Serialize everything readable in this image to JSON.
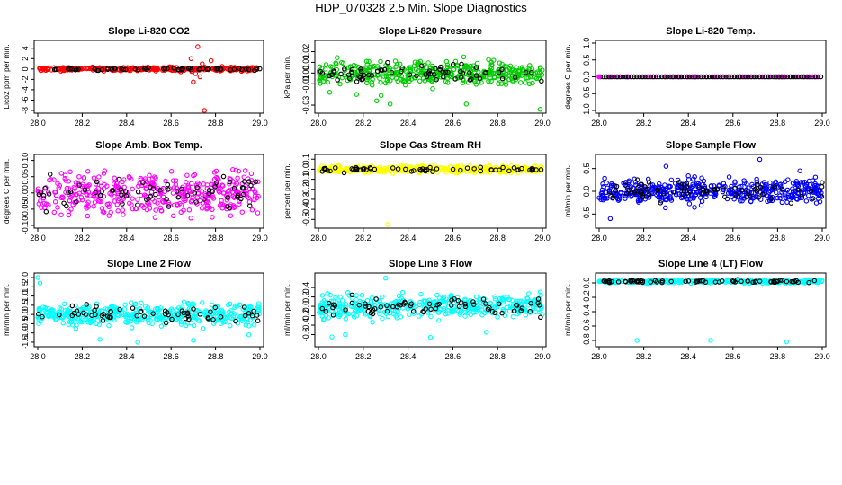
{
  "figure_title": "HDP_070328  2.5 Min. Slope Diagnostics",
  "colors": {
    "red": "#ff0000",
    "green": "#00cc00",
    "magenta": "#ff00ff",
    "yellow": "#ffff00",
    "blue": "#0000ff",
    "cyan": "#00ffff",
    "black": "#000000"
  },
  "chart_data": [
    {
      "type": "scatter",
      "title": "Slope Li-820 CO2",
      "ylabel": "Lico2 ppm per min.",
      "xlim": [
        28.0,
        29.0
      ],
      "ylim": [
        -8,
        5
      ],
      "xticks": [
        "28.0",
        "28.2",
        "28.4",
        "28.6",
        "28.8",
        "29.0"
      ],
      "yticks": [
        {
          "v": -8,
          "label": "-8"
        },
        {
          "v": -6,
          "label": "-6"
        },
        {
          "v": -4,
          "label": "-4"
        },
        {
          "v": -2,
          "label": "-2"
        },
        {
          "v": 0,
          "label": "0"
        },
        {
          "v": 2,
          "label": "2"
        },
        {
          "v": 4,
          "label": "4"
        }
      ],
      "color": "red",
      "spread": 0.25,
      "n_color": 300,
      "n_black": 60,
      "outliers": [
        [
          28.72,
          4.3
        ],
        [
          28.75,
          -8.0
        ],
        [
          28.7,
          -2.5
        ],
        [
          28.73,
          -1.5
        ],
        [
          28.78,
          1.6
        ],
        [
          28.71,
          -0.9
        ],
        [
          28.74,
          1.0
        ],
        [
          28.69,
          2.0
        ]
      ]
    },
    {
      "type": "scatter",
      "title": "Slope Li-820 Pressure",
      "ylabel": "kPa per min.",
      "xlim": [
        28.0,
        29.0
      ],
      "ylim": [
        -0.035,
        0.028
      ],
      "xticks": [
        "28.0",
        "28.2",
        "28.4",
        "28.6",
        "28.8",
        "29.0"
      ],
      "yticks": [
        {
          "v": -0.03,
          "label": "-0.03"
        },
        {
          "v": -0.01,
          "label": "-0.01"
        },
        {
          "v": 0.0,
          "label": "0.00"
        },
        {
          "v": 0.01,
          "label": "0.01"
        },
        {
          "v": 0.02,
          "label": "0.02"
        }
      ],
      "color": "green",
      "spread": 0.007,
      "n_color": 420,
      "n_black": 70,
      "outliers": [
        [
          28.26,
          -0.026
        ],
        [
          28.32,
          -0.029
        ],
        [
          28.66,
          -0.029
        ],
        [
          28.99,
          -0.034
        ],
        [
          28.05,
          -0.018
        ],
        [
          28.17,
          -0.02
        ],
        [
          28.28,
          -0.021
        ]
      ]
    },
    {
      "type": "scatter",
      "title": "Slope Li-820 Temp.",
      "ylabel": "degrees C per min.",
      "xlim": [
        28.0,
        29.0
      ],
      "ylim": [
        -1.0,
        1.0
      ],
      "xticks": [
        "28.0",
        "28.2",
        "28.4",
        "28.6",
        "28.8",
        "29.0"
      ],
      "yticks": [
        {
          "v": -1.0,
          "label": "-1.0"
        },
        {
          "v": -0.5,
          "label": "-0.5"
        },
        {
          "v": 0.0,
          "label": "0.0"
        },
        {
          "v": 0.5,
          "label": "0.5"
        },
        {
          "v": 1.0,
          "label": "1.0"
        }
      ],
      "color": "magenta",
      "spread": 0.0,
      "n_color": 80,
      "n_black": 80,
      "outliers": []
    },
    {
      "type": "scatter",
      "title": "Slope Amb. Box Temp.",
      "ylabel": "degrees C per min.",
      "xlim": [
        28.0,
        29.0
      ],
      "ylim": [
        -0.1,
        0.11
      ],
      "xticks": [
        "28.0",
        "28.2",
        "28.4",
        "28.6",
        "28.8",
        "29.0"
      ],
      "yticks": [
        {
          "v": -0.1,
          "label": "-0.10"
        },
        {
          "v": -0.05,
          "label": "-0.05"
        },
        {
          "v": 0.0,
          "label": "0.00"
        },
        {
          "v": 0.05,
          "label": "0.05"
        },
        {
          "v": 0.1,
          "label": "0.10"
        }
      ],
      "color": "magenta",
      "spread": 0.045,
      "n_color": 420,
      "n_black": 70,
      "outliers": []
    },
    {
      "type": "scatter",
      "title": "Slope Gas Stream RH",
      "ylabel": "percent per min.",
      "xlim": [
        28.0,
        29.0
      ],
      "ylim": [
        -0.56,
        0.12
      ],
      "xticks": [
        "28.0",
        "28.2",
        "28.4",
        "28.6",
        "28.8",
        "29.0"
      ],
      "yticks": [
        {
          "v": -0.5,
          "label": "-0.5"
        },
        {
          "v": -0.4,
          "label": "-0.4"
        },
        {
          "v": -0.3,
          "label": "-0.3"
        },
        {
          "v": -0.2,
          "label": "-0.2"
        },
        {
          "v": -0.1,
          "label": "-0.1"
        },
        {
          "v": 0.0,
          "label": "0.0"
        },
        {
          "v": 0.1,
          "label": "0.1"
        }
      ],
      "color": "yellow",
      "spread": 0.025,
      "n_color": 420,
      "n_black": 60,
      "center": 0.0,
      "outliers": [
        [
          28.31,
          -0.55
        ]
      ]
    },
    {
      "type": "scatter",
      "title": "Slope Sample Flow",
      "ylabel": "ml/min per min.",
      "xlim": [
        28.0,
        29.0
      ],
      "ylim": [
        -0.75,
        0.75
      ],
      "xticks": [
        "28.0",
        "28.2",
        "28.4",
        "28.6",
        "28.8",
        "29.0"
      ],
      "yticks": [
        {
          "v": -0.5,
          "label": "-0.5"
        },
        {
          "v": 0.0,
          "label": "0.0"
        },
        {
          "v": 0.5,
          "label": "0.5"
        }
      ],
      "color": "blue",
      "spread": 0.18,
      "n_color": 450,
      "n_black": 70,
      "outliers": [
        [
          28.72,
          0.7
        ],
        [
          28.3,
          0.55
        ],
        [
          28.05,
          -0.6
        ],
        [
          28.9,
          0.45
        ]
      ]
    },
    {
      "type": "scatter",
      "title": "Slope Line 2 Flow",
      "ylabel": "ml/min per min.",
      "xlim": [
        28.0,
        29.0
      ],
      "ylim": [
        -1.6,
        2.1
      ],
      "xticks": [
        "28.0",
        "28.2",
        "28.4",
        "28.6",
        "28.8",
        "29.0"
      ],
      "yticks": [
        {
          "v": -1.5,
          "label": "-1.5"
        },
        {
          "v": -1.0,
          "label": "-1.0"
        },
        {
          "v": -0.5,
          "label": "-0.5"
        },
        {
          "v": 0.0,
          "label": "0.0"
        },
        {
          "v": 0.5,
          "label": "0.5"
        },
        {
          "v": 1.0,
          "label": "1.0"
        },
        {
          "v": 1.5,
          "label": "1.5"
        },
        {
          "v": 2.0,
          "label": "2.0"
        }
      ],
      "color": "cyan",
      "spread": 0.4,
      "n_color": 420,
      "n_black": 60,
      "outliers": [
        [
          28.0,
          2.0
        ],
        [
          28.01,
          1.7
        ],
        [
          28.28,
          -1.35
        ],
        [
          28.45,
          -1.5
        ],
        [
          28.7,
          -1.4
        ],
        [
          28.95,
          -1.1
        ]
      ]
    },
    {
      "type": "scatter",
      "title": "Slope Line 3 Flow",
      "ylabel": "ml/min per min.",
      "xlim": [
        28.0,
        29.0
      ],
      "ylim": [
        -0.8,
        0.65
      ],
      "xticks": [
        "28.0",
        "28.2",
        "28.4",
        "28.6",
        "28.8",
        "29.0"
      ],
      "yticks": [
        {
          "v": -0.6,
          "label": "-0.6"
        },
        {
          "v": -0.4,
          "label": "-0.4"
        },
        {
          "v": -0.2,
          "label": "-0.2"
        },
        {
          "v": 0.0,
          "label": "0.0"
        },
        {
          "v": 0.2,
          "label": "0.2"
        },
        {
          "v": 0.4,
          "label": "0.4"
        }
      ],
      "color": "cyan",
      "spread": 0.16,
      "n_color": 420,
      "n_black": 70,
      "outliers": [
        [
          28.3,
          0.6
        ],
        [
          28.06,
          -0.65
        ],
        [
          28.12,
          -0.6
        ],
        [
          28.5,
          -0.66
        ],
        [
          28.75,
          -0.55
        ]
      ]
    },
    {
      "type": "scatter",
      "title": "Slope Line 4 (LT) Flow",
      "ylabel": "ml/min per min.",
      "xlim": [
        28.0,
        29.0
      ],
      "ylim": [
        -0.85,
        0.1
      ],
      "xticks": [
        "28.0",
        "28.2",
        "28.4",
        "28.6",
        "28.8",
        "29.0"
      ],
      "yticks": [
        {
          "v": -0.8,
          "label": "-0.8"
        },
        {
          "v": -0.6,
          "label": "-0.6"
        },
        {
          "v": -0.4,
          "label": "-0.4"
        },
        {
          "v": -0.2,
          "label": "-0.2"
        },
        {
          "v": 0.0,
          "label": "0.0"
        }
      ],
      "color": "cyan",
      "spread": 0.015,
      "n_color": 300,
      "n_black": 70,
      "center": 0.02,
      "outliers": [
        [
          28.17,
          -0.8
        ],
        [
          28.5,
          -0.8
        ],
        [
          28.84,
          -0.82
        ]
      ]
    }
  ]
}
